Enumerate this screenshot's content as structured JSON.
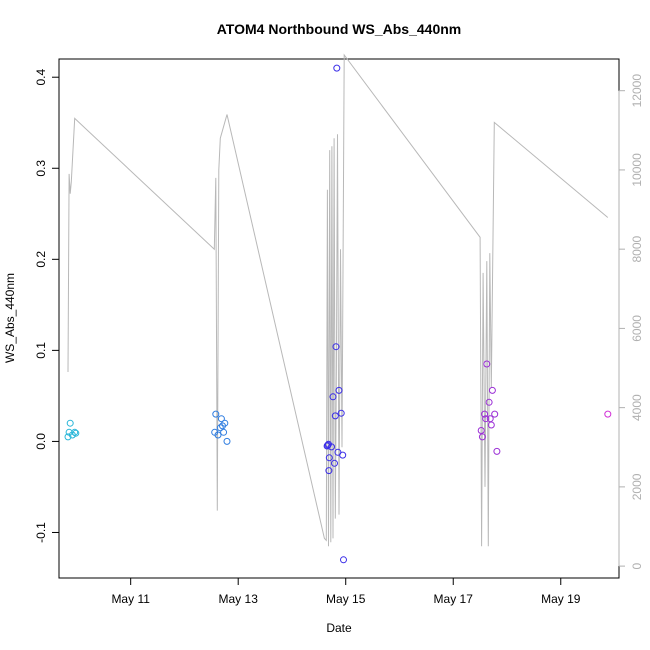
{
  "chart_data": {
    "type": "scatter",
    "title": "ATOM4 Northbound WS_Abs_440nm",
    "xlabel": "Date",
    "ylabel": "WS_Abs_440nm",
    "x_unit": "days",
    "xlim": [
      "2016-05-09T16:00",
      "2016-05-20T02:00"
    ],
    "ylim": [
      -0.15,
      0.42
    ],
    "x_ticks": [
      {
        "value": "2016-05-11",
        "label": "May 11"
      },
      {
        "value": "2016-05-13",
        "label": "May 13"
      },
      {
        "value": "2016-05-15",
        "label": "May 15"
      },
      {
        "value": "2016-05-17",
        "label": "May 17"
      },
      {
        "value": "2016-05-19",
        "label": "May 19"
      }
    ],
    "y_ticks": [
      {
        "value": -0.1,
        "label": "-0.1"
      },
      {
        "value": 0.0,
        "label": "0.0"
      },
      {
        "value": 0.1,
        "label": "0.1"
      },
      {
        "value": 0.2,
        "label": "0.2"
      },
      {
        "value": 0.3,
        "label": "0.3"
      },
      {
        "value": 0.4,
        "label": "0.4"
      }
    ],
    "y2lim": [
      -300,
      12800
    ],
    "y2_ticks": [
      {
        "value": 0,
        "label": "0"
      },
      {
        "value": 2000,
        "label": "2000"
      },
      {
        "value": 4000,
        "label": "4000"
      },
      {
        "value": 6000,
        "label": "6000"
      },
      {
        "value": 8000,
        "label": "8000"
      },
      {
        "value": 10000,
        "label": "10000"
      },
      {
        "value": 12000,
        "label": "12000"
      }
    ],
    "grid": false,
    "series": [
      {
        "kind": "points",
        "color": "#29b6d8",
        "points": [
          {
            "x": "2016-05-09T20:00",
            "y": 0.005
          },
          {
            "x": "2016-05-09T20:30",
            "y": 0.01
          },
          {
            "x": "2016-05-09T21:00",
            "y": 0.02
          },
          {
            "x": "2016-05-09T22:00",
            "y": 0.007
          },
          {
            "x": "2016-05-09T23:00",
            "y": 0.01
          },
          {
            "x": "2016-05-09T23:30",
            "y": 0.009
          }
        ]
      },
      {
        "kind": "points",
        "color": "#2f7de0",
        "points": [
          {
            "x": "2016-05-12T14:00",
            "y": 0.03
          },
          {
            "x": "2016-05-12T13:30",
            "y": 0.01
          },
          {
            "x": "2016-05-12T15:00",
            "y": 0.007
          },
          {
            "x": "2016-05-12T16:00",
            "y": 0.015
          },
          {
            "x": "2016-05-12T16:30",
            "y": 0.025
          },
          {
            "x": "2016-05-12T17:00",
            "y": 0.017
          },
          {
            "x": "2016-05-12T17:30",
            "y": 0.01
          },
          {
            "x": "2016-05-12T18:00",
            "y": 0.02
          },
          {
            "x": "2016-05-12T19:00",
            "y": 0.0
          }
        ]
      },
      {
        "kind": "points",
        "color": "#3b2ee8",
        "points": [
          {
            "x": "2016-05-14T15:40",
            "y": -0.005
          },
          {
            "x": "2016-05-14T16:00",
            "y": -0.004
          },
          {
            "x": "2016-05-14T16:20",
            "y": -0.003
          },
          {
            "x": "2016-05-14T16:40",
            "y": -0.018
          },
          {
            "x": "2016-05-14T16:30",
            "y": -0.032
          },
          {
            "x": "2016-05-14T17:40",
            "y": -0.006
          },
          {
            "x": "2016-05-14T18:20",
            "y": 0.049
          },
          {
            "x": "2016-05-14T19:00",
            "y": -0.024
          },
          {
            "x": "2016-05-14T19:20",
            "y": 0.028
          },
          {
            "x": "2016-05-14T19:40",
            "y": 0.104
          },
          {
            "x": "2016-05-14T20:00",
            "y": 0.41
          },
          {
            "x": "2016-05-14T20:30",
            "y": -0.012
          },
          {
            "x": "2016-05-14T21:00",
            "y": 0.056
          },
          {
            "x": "2016-05-14T22:00",
            "y": 0.031
          },
          {
            "x": "2016-05-14T22:40",
            "y": -0.015
          },
          {
            "x": "2016-05-14T23:00",
            "y": -0.13
          }
        ]
      },
      {
        "kind": "points",
        "color": "#9b2fd6",
        "points": [
          {
            "x": "2016-05-17T12:30",
            "y": 0.012
          },
          {
            "x": "2016-05-17T13:00",
            "y": 0.005
          },
          {
            "x": "2016-05-17T14:00",
            "y": 0.03
          },
          {
            "x": "2016-05-17T14:30",
            "y": 0.025
          },
          {
            "x": "2016-05-17T15:00",
            "y": 0.085
          },
          {
            "x": "2016-05-17T16:00",
            "y": 0.043
          },
          {
            "x": "2016-05-17T16:30",
            "y": 0.025
          },
          {
            "x": "2016-05-17T17:00",
            "y": 0.018
          },
          {
            "x": "2016-05-17T17:30",
            "y": 0.056
          },
          {
            "x": "2016-05-17T18:30",
            "y": 0.03
          },
          {
            "x": "2016-05-17T19:30",
            "y": -0.011
          }
        ]
      },
      {
        "kind": "points",
        "color": "#d12fd6",
        "points": [
          {
            "x": "2016-05-19T21:00",
            "y": 0.03
          }
        ]
      },
      {
        "kind": "line",
        "axis": "right",
        "color": "#b8b8b8",
        "points": [
          {
            "x": "2016-05-09T20:00",
            "y": 4900
          },
          {
            "x": "2016-05-09T20:30",
            "y": 9900
          },
          {
            "x": "2016-05-09T21:00",
            "y": 9400
          },
          {
            "x": "2016-05-09T21:30",
            "y": 9700
          },
          {
            "x": "2016-05-09T23:00",
            "y": 11300
          },
          {
            "x": "2016-05-12T13:20",
            "y": 8000
          },
          {
            "x": "2016-05-12T14:00",
            "y": 9800
          },
          {
            "x": "2016-05-12T14:40",
            "y": 1400
          },
          {
            "x": "2016-05-12T15:20",
            "y": 10000
          },
          {
            "x": "2016-05-12T16:00",
            "y": 10800
          },
          {
            "x": "2016-05-12T19:00",
            "y": 11400
          },
          {
            "x": "2016-05-14T14:30",
            "y": 700
          },
          {
            "x": "2016-05-14T15:20",
            "y": 650
          },
          {
            "x": "2016-05-14T15:50",
            "y": 9500
          },
          {
            "x": "2016-05-14T16:20",
            "y": 500
          },
          {
            "x": "2016-05-14T16:50",
            "y": 10500
          },
          {
            "x": "2016-05-14T17:20",
            "y": 600
          },
          {
            "x": "2016-05-14T17:50",
            "y": 10600
          },
          {
            "x": "2016-05-14T18:20",
            "y": 700
          },
          {
            "x": "2016-05-14T18:50",
            "y": 10800
          },
          {
            "x": "2016-05-14T19:20",
            "y": 1200
          },
          {
            "x": "2016-05-14T19:50",
            "y": 5000
          },
          {
            "x": "2016-05-14T20:20",
            "y": 10900
          },
          {
            "x": "2016-05-14T21:00",
            "y": 1300
          },
          {
            "x": "2016-05-14T21:40",
            "y": 8000
          },
          {
            "x": "2016-05-14T22:20",
            "y": 3000
          },
          {
            "x": "2016-05-14T23:20",
            "y": 12900
          },
          {
            "x": "2016-05-17T12:00",
            "y": 8300
          },
          {
            "x": "2016-05-17T12:40",
            "y": 500
          },
          {
            "x": "2016-05-17T13:20",
            "y": 7400
          },
          {
            "x": "2016-05-17T14:10",
            "y": 2000
          },
          {
            "x": "2016-05-17T15:00",
            "y": 7700
          },
          {
            "x": "2016-05-17T15:40",
            "y": 500
          },
          {
            "x": "2016-05-17T16:20",
            "y": 7900
          },
          {
            "x": "2016-05-17T17:00",
            "y": 4500
          },
          {
            "x": "2016-05-17T18:20",
            "y": 11200
          },
          {
            "x": "2016-05-19T21:00",
            "y": 8800
          }
        ]
      }
    ]
  }
}
